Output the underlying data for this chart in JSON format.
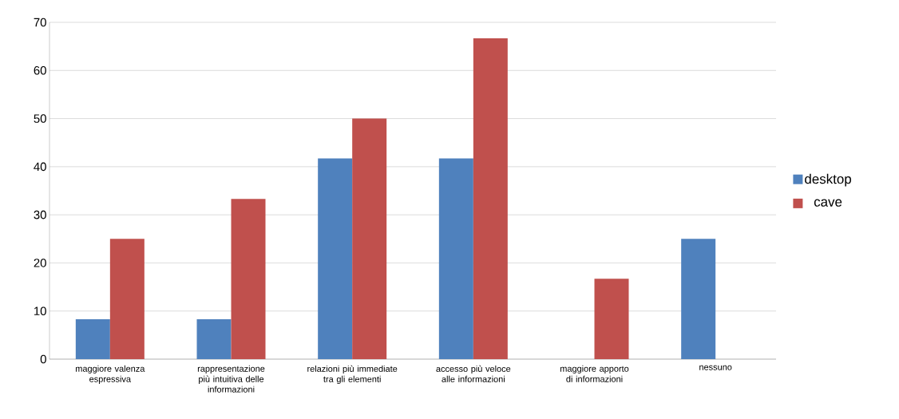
{
  "chart_data": {
    "type": "bar",
    "categories": [
      "maggiore valenza espressiva",
      "rappresentazione più intuitiva delle informazioni",
      "relazioni più immediate tra gli elementi",
      "accesso più veloce alle informazioni",
      "maggiore apporto di informazioni",
      "nessuno"
    ],
    "series": [
      {
        "name": "desktop",
        "color": "#4f81bd",
        "values": [
          8.3,
          8.3,
          41.7,
          41.7,
          0,
          25
        ]
      },
      {
        "name": "cave",
        "color": "#c0504d",
        "values": [
          25,
          33.3,
          50,
          66.7,
          16.7,
          0
        ]
      }
    ],
    "ylim": [
      0,
      70
    ],
    "yticks": [
      0,
      10,
      20,
      30,
      40,
      50,
      60,
      70
    ],
    "grid": "y",
    "legend": "right"
  }
}
